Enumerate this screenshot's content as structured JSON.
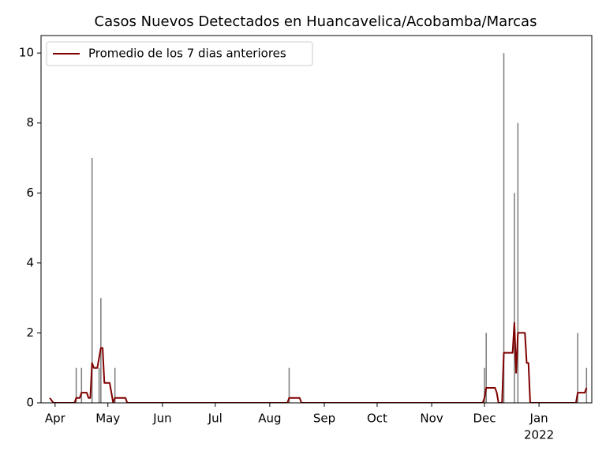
{
  "chart_data": {
    "type": "bar",
    "title": "Casos Nuevos Detectados en Huancavelica/Acobamba/Marcas",
    "xlim": [
      -8,
      305
    ],
    "xticks": [
      {
        "value": 0,
        "label": "Apr"
      },
      {
        "value": 30,
        "label": "May"
      },
      {
        "value": 61,
        "label": "Jun"
      },
      {
        "value": 91,
        "label": "Jul"
      },
      {
        "value": 122,
        "label": "Aug"
      },
      {
        "value": 153,
        "label": "Sep"
      },
      {
        "value": 183,
        "label": "Oct"
      },
      {
        "value": 214,
        "label": "Nov"
      },
      {
        "value": 244,
        "label": "Dec"
      },
      {
        "value": 275,
        "label": "Jan"
      }
    ],
    "year_label": "2022",
    "ylim": [
      0,
      10.5
    ],
    "yticks": [
      0,
      2,
      4,
      6,
      8,
      10
    ],
    "legend_position": "upper left",
    "series": [
      {
        "type": "bar",
        "color": "#808080",
        "x": [
          12,
          15,
          21,
          25,
          26,
          34,
          133,
          244,
          245,
          255,
          261,
          263,
          297,
          302
        ],
        "values": [
          1,
          1,
          7,
          1,
          3,
          1,
          1,
          1,
          2,
          10,
          6,
          8,
          2,
          1
        ]
      },
      {
        "type": "line",
        "name": "Promedio de los 7 dias anteriores",
        "color": "#800000",
        "x": [
          -3,
          -1,
          11,
          12,
          14,
          15,
          18,
          19,
          20,
          21,
          22,
          24,
          26,
          27,
          28,
          31,
          32,
          33,
          34,
          40,
          41,
          132,
          133,
          139,
          140,
          243,
          244,
          245,
          250,
          251,
          252,
          254,
          255,
          260,
          261,
          262,
          263,
          267,
          268,
          269,
          270,
          296,
          297,
          301,
          302
        ],
        "values": [
          0.14,
          0,
          0,
          0.14,
          0.14,
          0.29,
          0.29,
          0.14,
          0.14,
          1.14,
          1.0,
          1.0,
          1.57,
          1.57,
          0.57,
          0.57,
          0.29,
          0,
          0.14,
          0.14,
          0,
          0,
          0.14,
          0.14,
          0,
          0,
          0.14,
          0.43,
          0.43,
          0.29,
          0,
          0,
          1.43,
          1.43,
          2.29,
          0.86,
          2.0,
          2.0,
          1.14,
          1.14,
          0,
          0,
          0.29,
          0.29,
          0.43
        ]
      }
    ]
  }
}
